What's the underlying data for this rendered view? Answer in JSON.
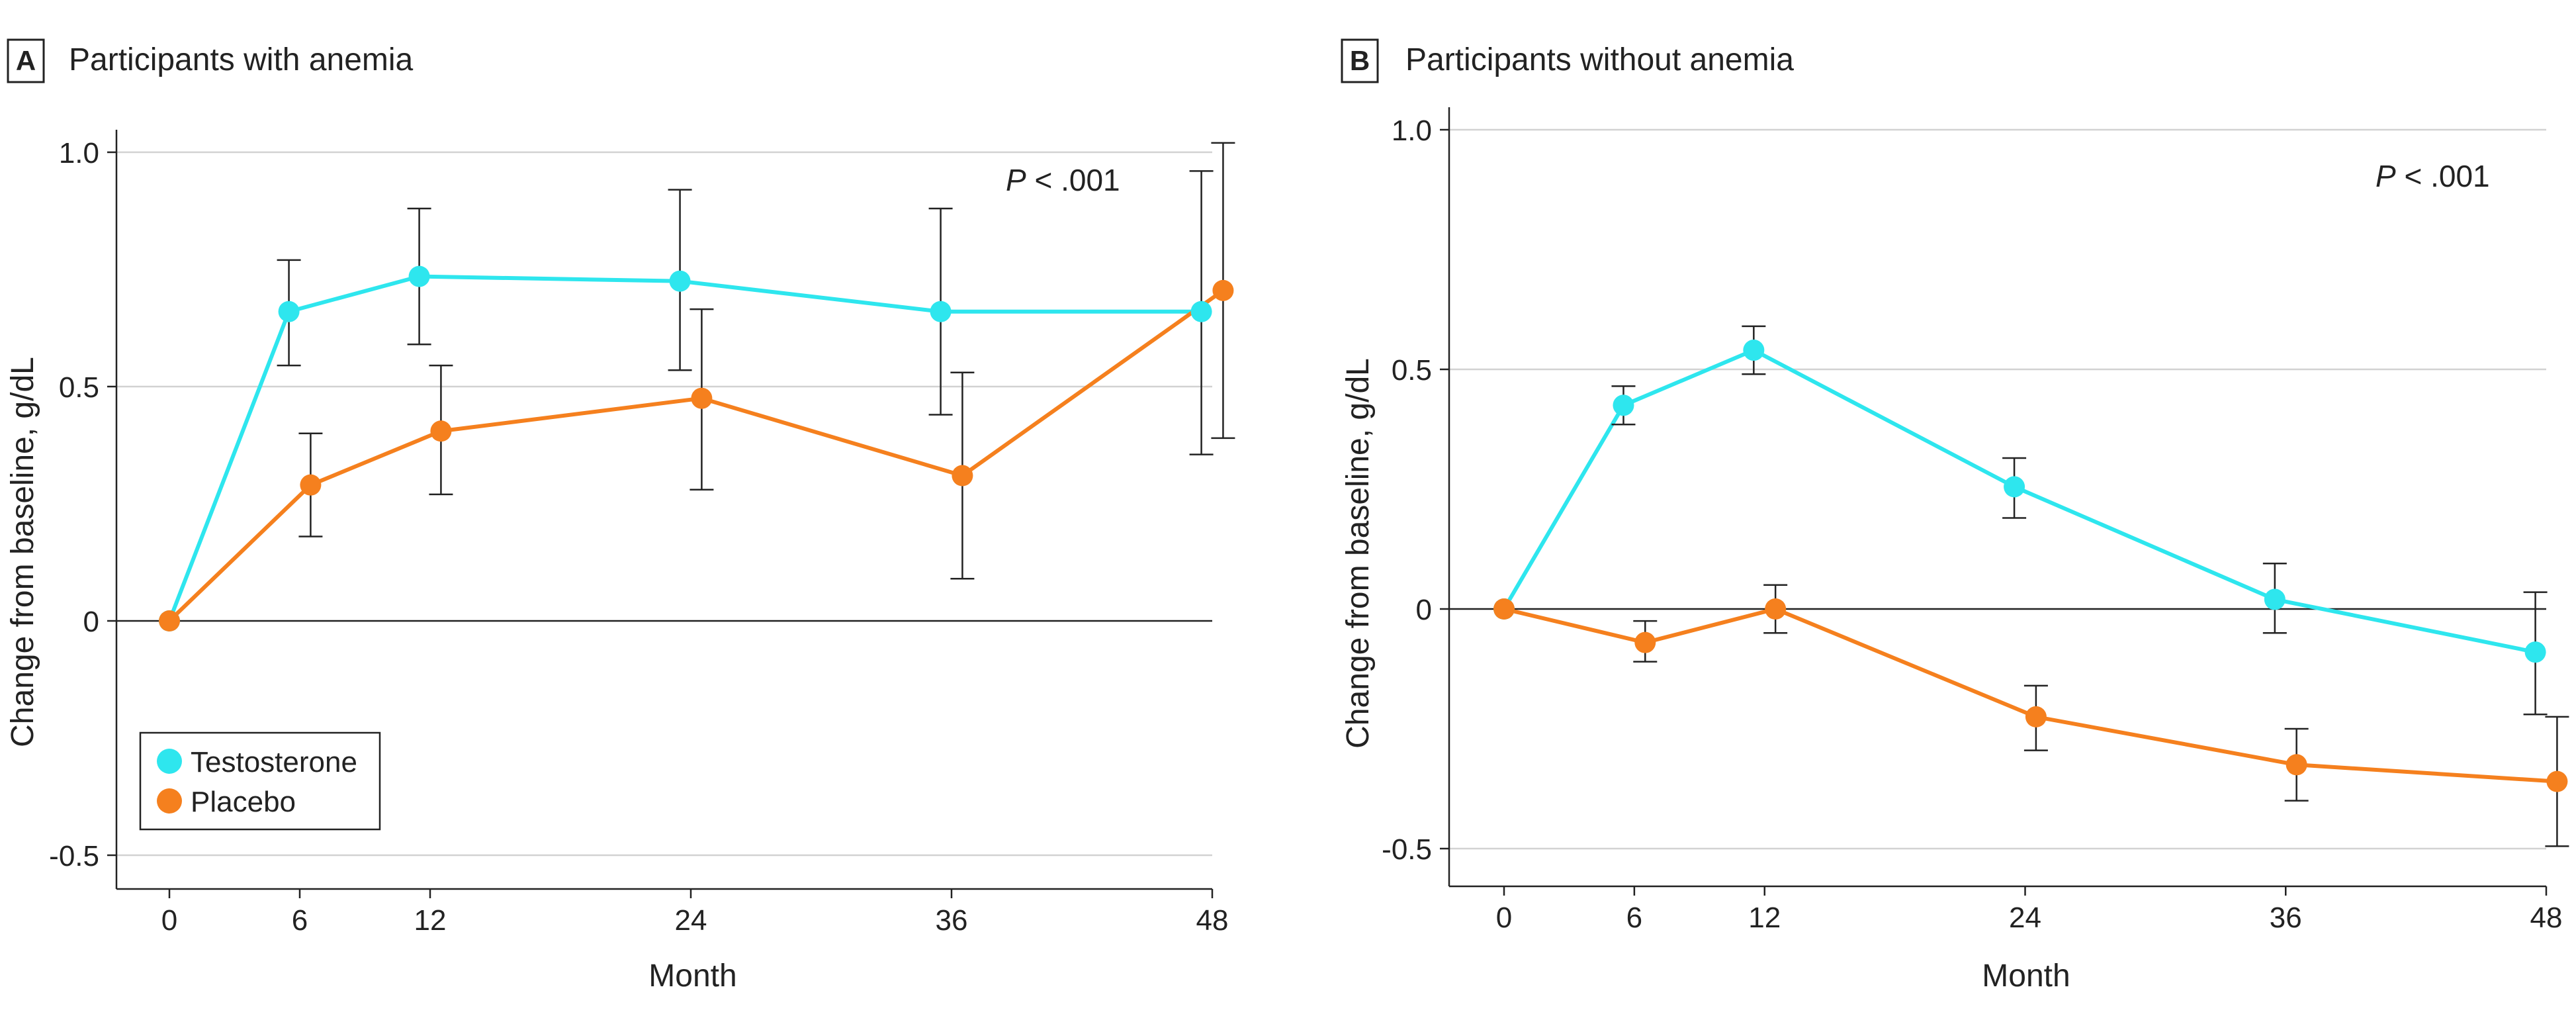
{
  "colors": {
    "testosterone": "#2ee6ee",
    "placebo": "#f5801e"
  },
  "chart_data": [
    {
      "type": "line",
      "panel_label": "A",
      "title": "Participants with anemia",
      "xlabel": "Month",
      "ylabel": "Change from baseline, g/dL",
      "annotation": {
        "prefix": "P",
        "text": " < .001"
      },
      "xlim": [
        0,
        48
      ],
      "ylim": [
        -0.5,
        1.0
      ],
      "x_ticks": [
        0,
        6,
        12,
        24,
        36,
        48
      ],
      "y_ticks": [
        {
          "value": 1.0,
          "label": "1.0"
        },
        {
          "value": 0.5,
          "label": "0.5"
        },
        {
          "value": 0,
          "label": "0"
        },
        {
          "value": -0.5,
          "label": "-0.5"
        }
      ],
      "legend": {
        "position": "bottom-left",
        "entries": [
          "Testosterone",
          "Placebo"
        ]
      },
      "series": [
        {
          "name": "Testosterone",
          "x": [
            0,
            5.5,
            11.5,
            23.5,
            35.5,
            47.5
          ],
          "y": [
            0,
            0.66,
            0.735,
            0.725,
            0.66,
            0.66
          ],
          "err_low": [
            null,
            0.545,
            0.59,
            0.535,
            0.44,
            0.355
          ],
          "err_high": [
            null,
            0.77,
            0.88,
            0.92,
            0.88,
            0.96
          ]
        },
        {
          "name": "Placebo",
          "x": [
            0,
            6.5,
            12.5,
            24.5,
            36.5,
            48.5
          ],
          "y": [
            0,
            0.29,
            0.405,
            0.475,
            0.31,
            0.705
          ],
          "err_low": [
            null,
            0.18,
            0.27,
            0.28,
            0.09,
            0.39
          ],
          "err_high": [
            null,
            0.4,
            0.545,
            0.665,
            0.53,
            1.02
          ]
        }
      ]
    },
    {
      "type": "line",
      "panel_label": "B",
      "title": "Participants without anemia",
      "xlabel": "Month",
      "ylabel": "Change from baseline, g/dL",
      "annotation": {
        "prefix": "P",
        "text": " < .001"
      },
      "xlim": [
        0,
        48
      ],
      "ylim": [
        -0.5,
        1.0
      ],
      "x_ticks": [
        0,
        6,
        12,
        24,
        36,
        48
      ],
      "y_ticks": [
        {
          "value": 1.0,
          "label": "1.0"
        },
        {
          "value": 0.5,
          "label": "0.5"
        },
        {
          "value": 0,
          "label": "0"
        },
        {
          "value": -0.5,
          "label": "-0.5"
        }
      ],
      "series": [
        {
          "name": "Testosterone",
          "x": [
            0,
            5.5,
            11.5,
            23.5,
            35.5,
            47.5
          ],
          "y": [
            0,
            0.425,
            0.54,
            0.255,
            0.02,
            -0.09
          ],
          "err_low": [
            null,
            0.385,
            0.49,
            0.19,
            -0.05,
            -0.22
          ],
          "err_high": [
            null,
            0.465,
            0.59,
            0.315,
            0.095,
            0.035
          ]
        },
        {
          "name": "Placebo",
          "x": [
            0,
            6.5,
            12.5,
            24.5,
            36.5,
            48.5
          ],
          "y": [
            0,
            -0.07,
            0.0,
            -0.225,
            -0.325,
            -0.36
          ],
          "err_low": [
            null,
            -0.11,
            -0.05,
            -0.295,
            -0.4,
            -0.495
          ],
          "err_high": [
            null,
            -0.025,
            0.05,
            -0.16,
            -0.25,
            -0.225
          ]
        }
      ]
    }
  ]
}
